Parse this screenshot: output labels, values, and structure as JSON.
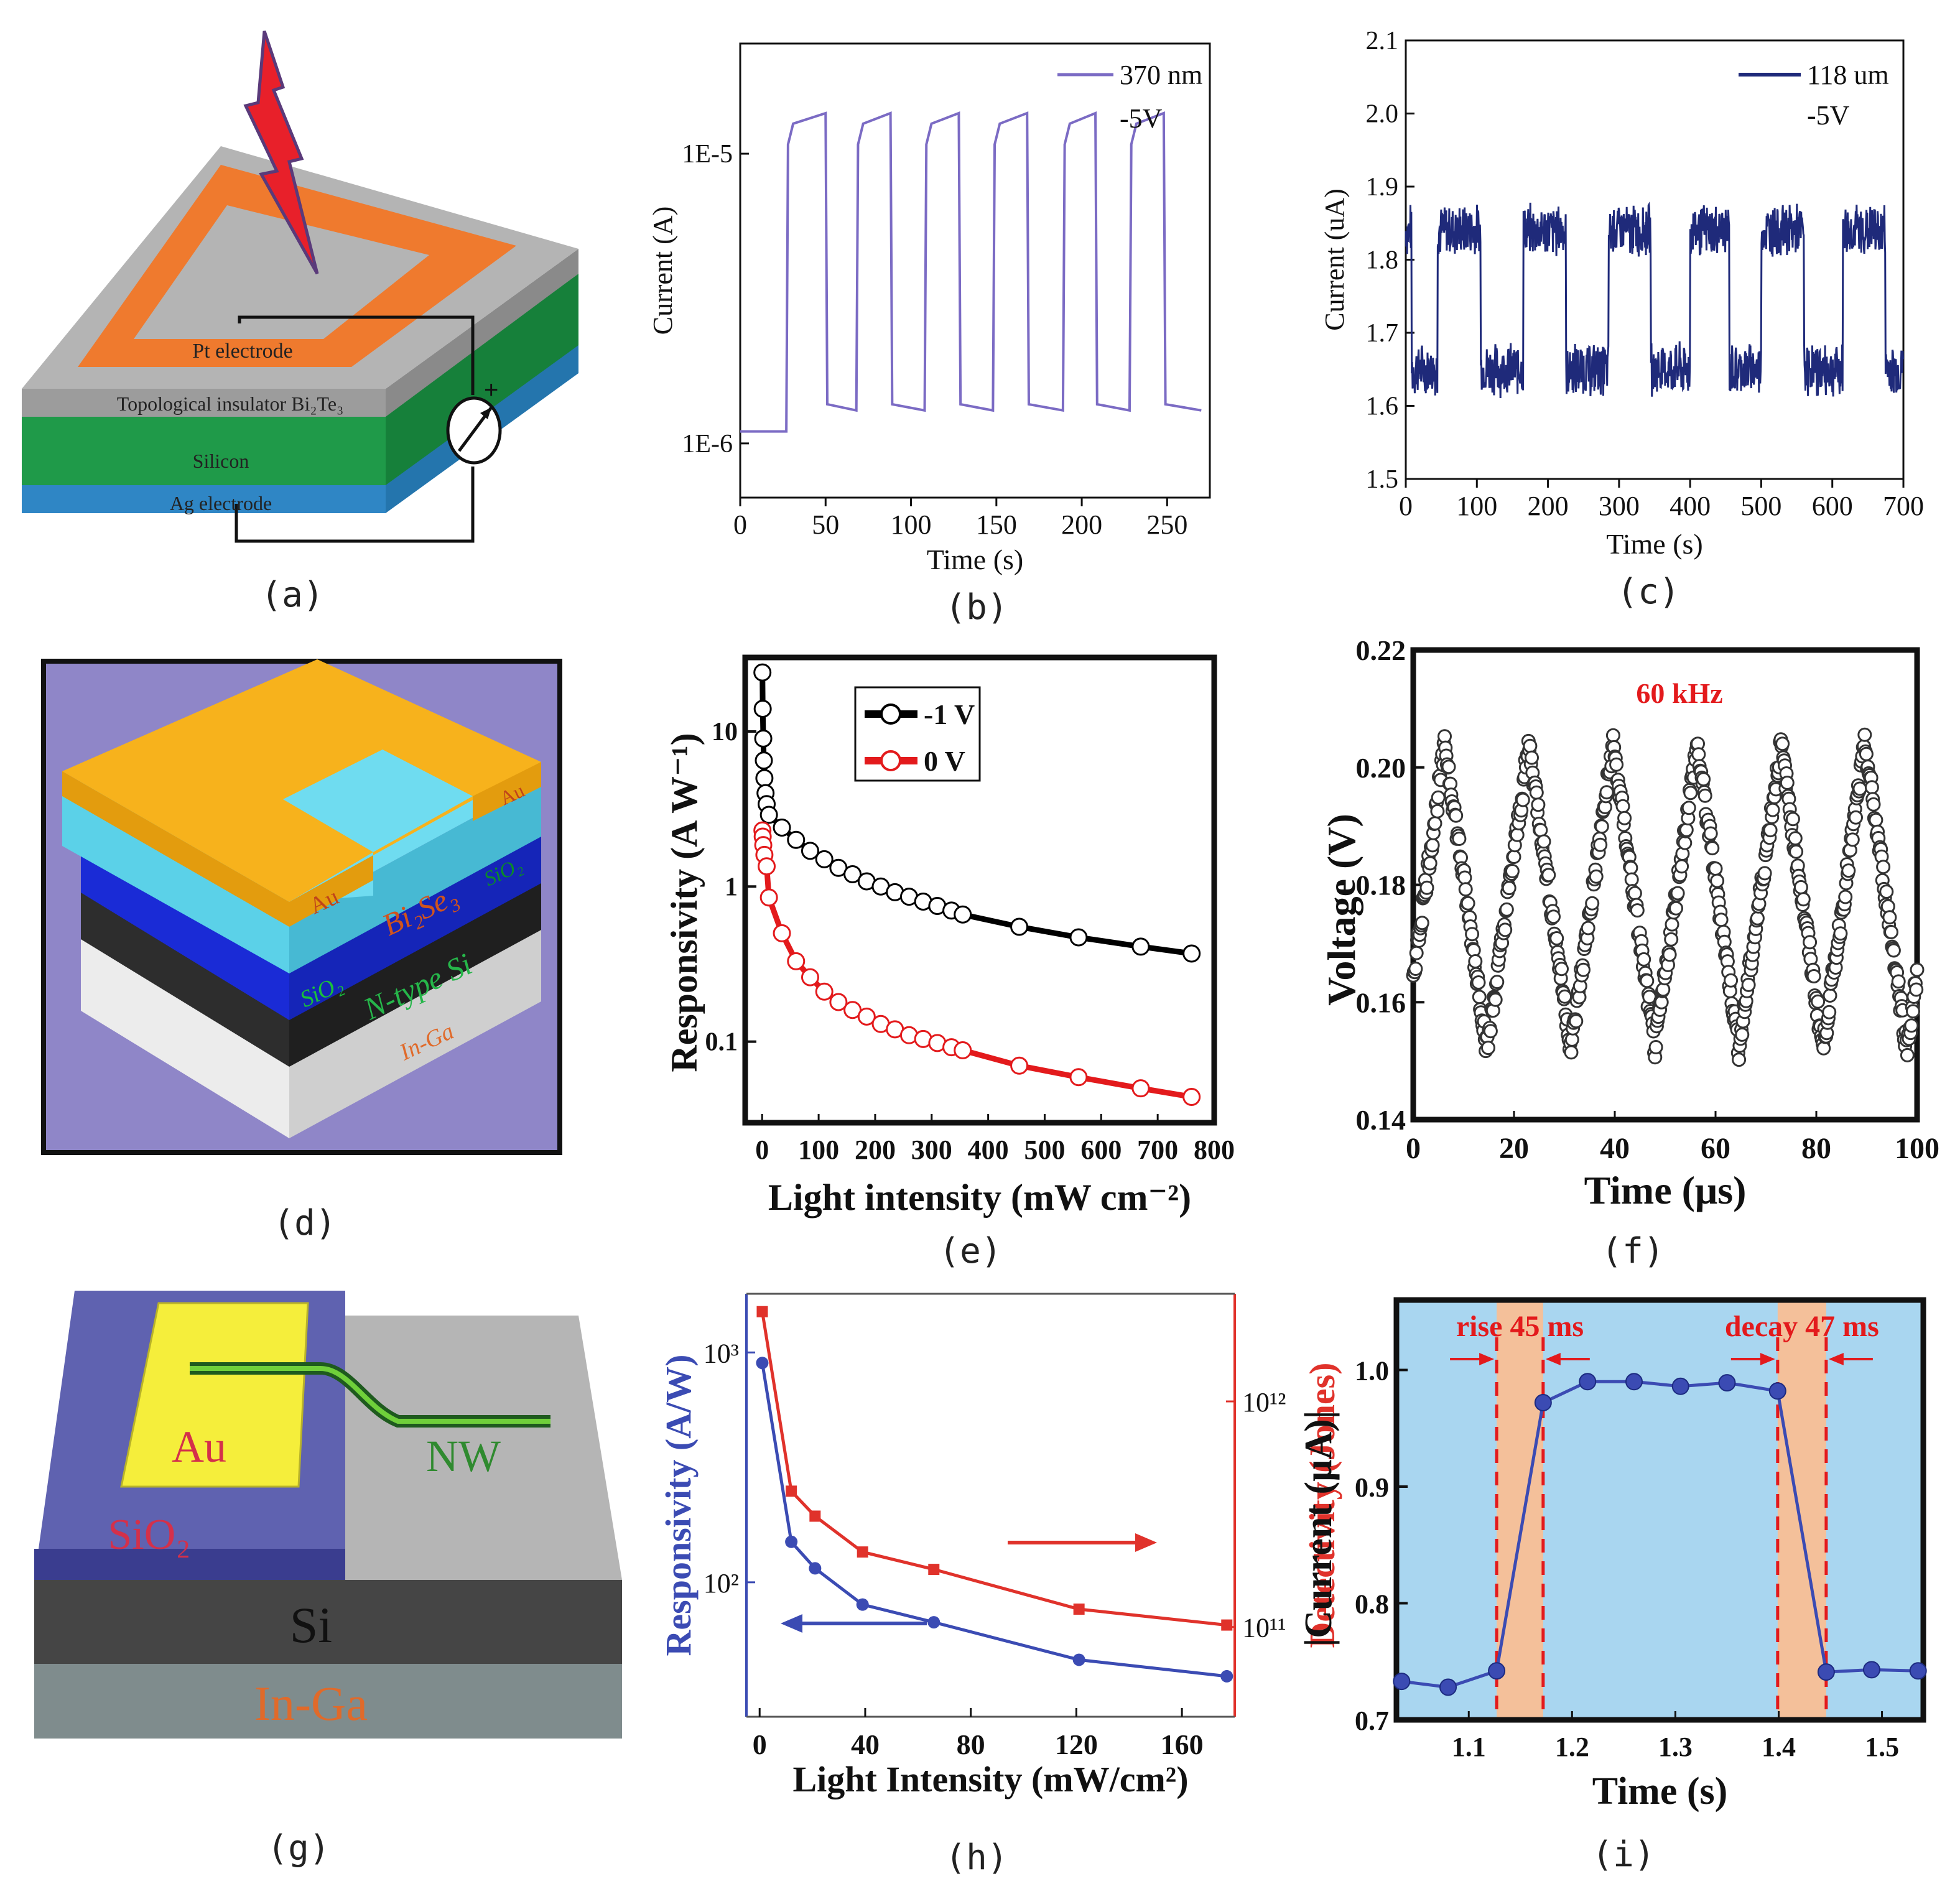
{
  "captions": [
    "(a)",
    "(b)",
    "(c)",
    "(d)",
    "(e)",
    "(f)",
    "(g)",
    "(h)",
    "(i)"
  ],
  "diagram_a": {
    "pt_electrode": "Pt electrode",
    "ti_layer": "Topological insulator Bi₂Te₃",
    "silicon": "Silicon",
    "ag_electrode": "Ag electrode",
    "plus": "+",
    "colors": {
      "top": "#a9a9a9",
      "frame": "#ef7a2e",
      "green": "#1f9a49",
      "blue": "#2f86c5",
      "bolt": "#e8202a"
    }
  },
  "diagram_d": {
    "au_top": "Au",
    "au_left": "Au",
    "bi2se3": "Bi₂Se₃",
    "sio2_right": "SiO₂",
    "sio2_left": "SiO₂",
    "ntype": "N-type Si",
    "inga": "In-Ga",
    "colors": {
      "bg": "#8f86c8",
      "gold": "#f7b21c",
      "cyan": "#5bd1e8",
      "navy": "#1a2bd6",
      "dark": "#2d2d2d",
      "white": "#e9e9e9"
    }
  },
  "diagram_g": {
    "au": "Au",
    "nw": "NW",
    "sio2": "SiO₂",
    "si": "Si",
    "inga": "In-Ga",
    "colors": {
      "sio2": "#5f62b0",
      "au": "#f5ee3b",
      "si": "#444444",
      "inga": "#7f8c8d",
      "grey": "#b5b5b5"
    }
  },
  "chart_data": [
    {
      "id": "b",
      "type": "line",
      "title": "",
      "xlabel": "Time (s)",
      "ylabel": "Current (A)",
      "xlim": [
        0,
        275
      ],
      "ylim": [
        6.5e-07,
        2.4e-05
      ],
      "yscale": "log",
      "xticks": [
        0,
        50,
        100,
        150,
        200,
        250
      ],
      "yticks": [
        {
          "v": 1e-05,
          "label": "1E-5"
        },
        {
          "v": 1e-06,
          "label": "1E-6"
        }
      ],
      "legend": {
        "label": "370 nm",
        "sub": "-5V",
        "position": "top-right"
      },
      "color": "#7b6bc4",
      "baseline": 1.1e-06,
      "low": 1.3e-06,
      "high": 1.38e-05,
      "on_intervals": [
        [
          27,
          50
        ],
        [
          68,
          88
        ],
        [
          108,
          128
        ],
        [
          148,
          168
        ],
        [
          189,
          208
        ],
        [
          228,
          248
        ]
      ],
      "x_end": 270
    },
    {
      "id": "c",
      "type": "line",
      "xlabel": "Time (s)",
      "ylabel": "Current (uA)",
      "xlim": [
        0,
        700
      ],
      "ylim": [
        1.5,
        2.1
      ],
      "xticks": [
        0,
        100,
        200,
        300,
        400,
        500,
        600,
        700
      ],
      "yticks": [
        1.5,
        1.6,
        1.7,
        1.8,
        1.9,
        2.0,
        2.1
      ],
      "legend": {
        "label": "118 um",
        "sub": "-5V",
        "position": "top-right"
      },
      "color": "#1f2a7a",
      "low": 1.65,
      "high": 1.84,
      "noise": 0.025,
      "on_intervals": [
        [
          0,
          8
        ],
        [
          45,
          105
        ],
        [
          165,
          225
        ],
        [
          285,
          345
        ],
        [
          400,
          455
        ],
        [
          500,
          560
        ],
        [
          615,
          675
        ]
      ],
      "x_end": 700
    },
    {
      "id": "e",
      "type": "scatter",
      "xlabel": "Light intensity (mW cm⁻²)",
      "ylabel": "Responsivity (A W⁻¹)",
      "xlim": [
        -30,
        800
      ],
      "ylim": [
        0.03,
        30
      ],
      "yscale": "log",
      "xticks": [
        0,
        100,
        200,
        300,
        400,
        500,
        600,
        700,
        800
      ],
      "yticks": [
        {
          "v": 10,
          "label": "10"
        },
        {
          "v": 1,
          "label": "1"
        },
        {
          "v": 0.1,
          "label": "0.1"
        }
      ],
      "series": [
        {
          "name": "-1 V",
          "color": "#000000",
          "x": [
            0.5,
            1,
            2,
            3,
            4,
            6,
            8,
            12,
            35,
            60,
            85,
            110,
            135,
            160,
            185,
            210,
            235,
            260,
            285,
            310,
            335,
            355,
            455,
            560,
            670,
            760
          ],
          "y": [
            24,
            14,
            9,
            6.5,
            5,
            4,
            3.4,
            2.9,
            2.4,
            2.0,
            1.7,
            1.5,
            1.32,
            1.2,
            1.08,
            1.0,
            0.92,
            0.86,
            0.8,
            0.75,
            0.7,
            0.66,
            0.55,
            0.47,
            0.41,
            0.37
          ]
        },
        {
          "name": "0 V",
          "color": "#e31a1c",
          "x": [
            0.5,
            1,
            2,
            4,
            8,
            12,
            35,
            60,
            85,
            110,
            135,
            160,
            185,
            210,
            235,
            260,
            285,
            310,
            335,
            355,
            455,
            560,
            670,
            760
          ],
          "y": [
            2.3,
            2.1,
            1.85,
            1.6,
            1.35,
            0.85,
            0.5,
            0.33,
            0.26,
            0.21,
            0.18,
            0.16,
            0.145,
            0.13,
            0.12,
            0.11,
            0.104,
            0.098,
            0.092,
            0.088,
            0.07,
            0.059,
            0.05,
            0.044
          ]
        }
      ]
    },
    {
      "id": "f",
      "type": "scatter",
      "xlabel": "Time (μs)",
      "ylabel": "Voltage (V)",
      "xlim": [
        0,
        100
      ],
      "ylim": [
        0.14,
        0.22
      ],
      "xticks": [
        0,
        20,
        40,
        60,
        80,
        100
      ],
      "yticks": [
        0.14,
        0.16,
        0.18,
        0.2,
        0.22
      ],
      "annotation": "60 kHz",
      "frequency_khz": 60,
      "v_min": 0.152,
      "v_max": 0.204,
      "series_color": "#333333"
    },
    {
      "id": "h",
      "type": "line",
      "xlabel": "Light Intensity (mW/cm²)",
      "ylabel_left": "Responsivity (A/W)",
      "ylabel_right": "Detectivity (Jones)",
      "xlim": [
        -5,
        180
      ],
      "xticks": [
        0,
        40,
        80,
        120,
        160
      ],
      "ylim_left": [
        26,
        1800
      ],
      "ylim_right": [
        40000000000.0,
        3000000000000.0
      ],
      "yscale": "log",
      "yticks_left": [
        {
          "v": 1000,
          "label": "10³"
        },
        {
          "v": 100,
          "label": "10²"
        }
      ],
      "yticks_right": [
        {
          "v": 1000000000000.0,
          "label": "10¹²"
        },
        {
          "v": 100000000000.0,
          "label": "10¹¹"
        }
      ],
      "series": [
        {
          "name": "Responsivity",
          "axis": "left",
          "color": "#3b4bb3",
          "x": [
            1,
            12,
            21,
            39,
            66,
            121,
            177
          ],
          "y": [
            900,
            150,
            115,
            80,
            67,
            46,
            39
          ]
        },
        {
          "name": "Detectivity",
          "axis": "right",
          "color": "#e0322b",
          "x": [
            1,
            12,
            21,
            39,
            66,
            121,
            177
          ],
          "y": [
            2500000000000.0,
            400000000000.0,
            310000000000.0,
            215000000000.0,
            180000000000.0,
            120000000000.0,
            102000000000.0
          ]
        }
      ]
    },
    {
      "id": "i",
      "type": "line",
      "xlabel": "Time (s)",
      "ylabel": "|Current (μA)|",
      "xlim": [
        1.03,
        1.54
      ],
      "ylim": [
        0.7,
        1.06
      ],
      "xticks": [
        1.1,
        1.2,
        1.3,
        1.4,
        1.5
      ],
      "yticks": [
        0.7,
        0.8,
        0.9,
        1.0
      ],
      "annotations": [
        {
          "text": "rise 45 ms"
        },
        {
          "text": "decay 47 ms"
        }
      ],
      "rise_window": [
        1.127,
        1.172
      ],
      "decay_window": [
        1.399,
        1.446
      ],
      "color": "#3b4bb3",
      "x": [
        1.035,
        1.08,
        1.127,
        1.172,
        1.215,
        1.26,
        1.305,
        1.35,
        1.399,
        1.446,
        1.49,
        1.535
      ],
      "y": [
        0.733,
        0.728,
        0.742,
        0.972,
        0.99,
        0.99,
        0.986,
        0.989,
        0.982,
        0.741,
        0.743,
        0.742
      ]
    }
  ]
}
